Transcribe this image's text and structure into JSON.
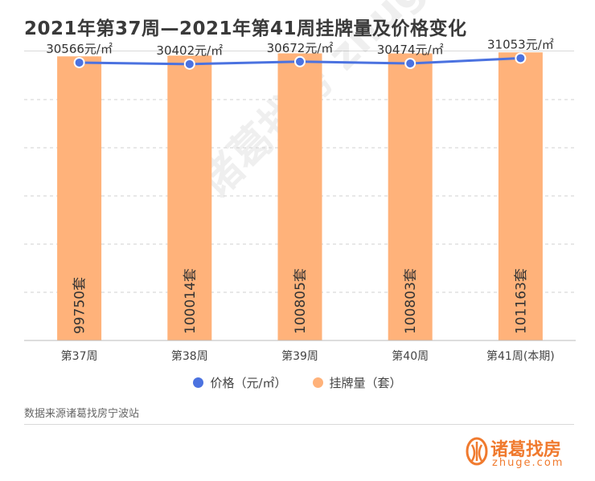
{
  "title": "2021年第37周—2021年第41周挂牌量及价格变化",
  "source": "数据来源诸葛找房宁波站",
  "brand": {
    "name": "诸葛找房",
    "domain": "zhuge.com",
    "watermark": "诸葛找房 zhuge.com"
  },
  "colors": {
    "bar": "#ffb27a",
    "line": "#4b72e0",
    "grid": "#d0d0d0",
    "brand": "#f07a2e"
  },
  "chart_data": {
    "type": "bar",
    "categories": [
      "第37周",
      "第38周",
      "第39周",
      "第40周",
      "第41周(本期)"
    ],
    "series": [
      {
        "name": "价格（元/㎡）",
        "type": "line",
        "values": [
          30566,
          30402,
          30672,
          30474,
          31053
        ],
        "labels": [
          "30566元/㎡",
          "30402元/㎡",
          "30672元/㎡",
          "30474元/㎡",
          "31053元/㎡"
        ],
        "color": "#4b72e0"
      },
      {
        "name": "挂牌量（套）",
        "type": "bar",
        "values": [
          99750,
          100014,
          100805,
          100803,
          101163
        ],
        "labels": [
          "99750套",
          "100014套",
          "100805套",
          "100803套",
          "101163套"
        ],
        "color": "#ffb27a"
      }
    ],
    "price_axis_range": [
      0,
      31800
    ],
    "listing_axis_range": [
      0,
      101500
    ],
    "grid": true,
    "legend_position": "bottom"
  }
}
